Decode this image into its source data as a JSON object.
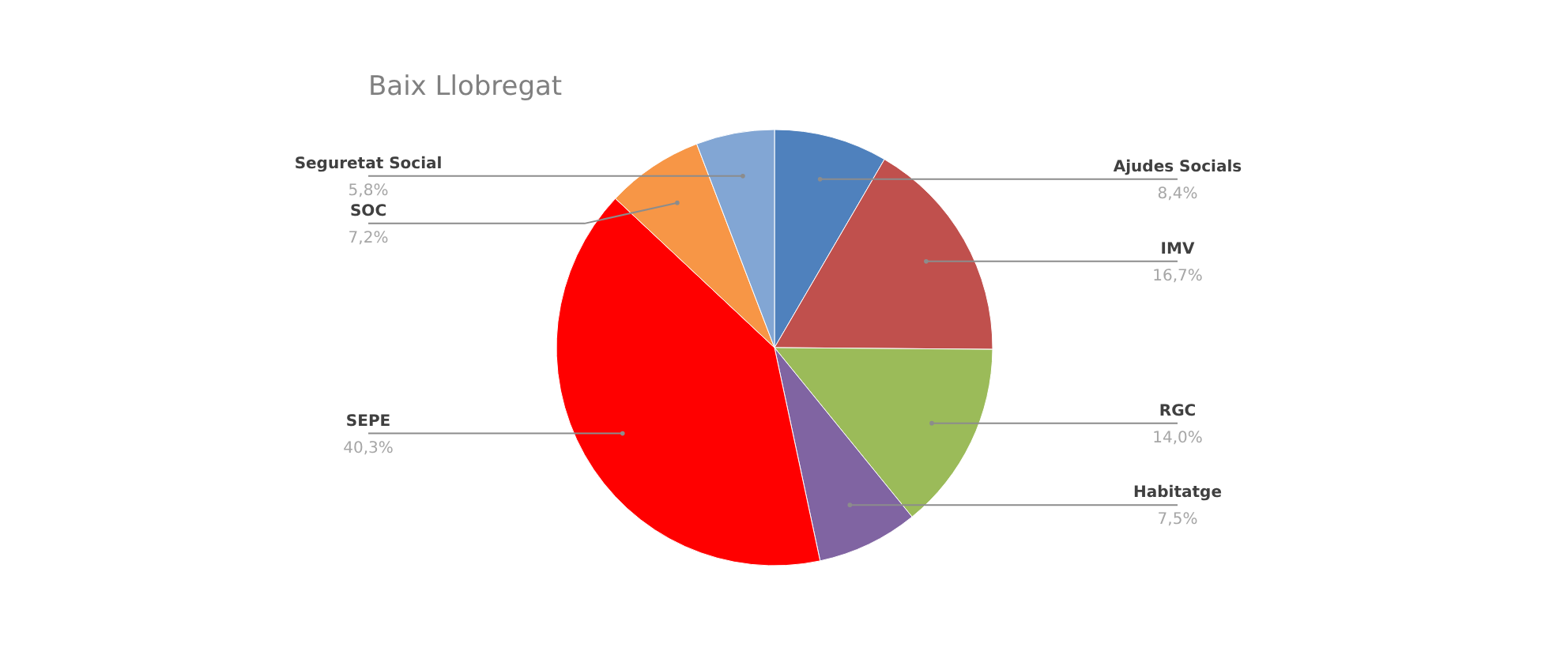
{
  "chart_data": {
    "type": "pie",
    "title": "Baix Llobregat",
    "categories": [
      "Ajudes Socials",
      "IMV",
      "RGC",
      "Habitatge",
      "SEPE",
      "SOC",
      "Seguretat Social"
    ],
    "values": [
      8.4,
      16.7,
      14.0,
      7.5,
      40.3,
      7.2,
      5.8
    ],
    "colors": [
      "#4f81bd",
      "#c0504d",
      "#9bbb59",
      "#8064a2",
      "#ff0000",
      "#f79646",
      "#82a6d4"
    ],
    "value_labels": [
      "8,4%",
      "16,7%",
      "14,0%",
      "7,5%",
      "40,3%",
      "7,2%",
      "5,8%"
    ]
  }
}
